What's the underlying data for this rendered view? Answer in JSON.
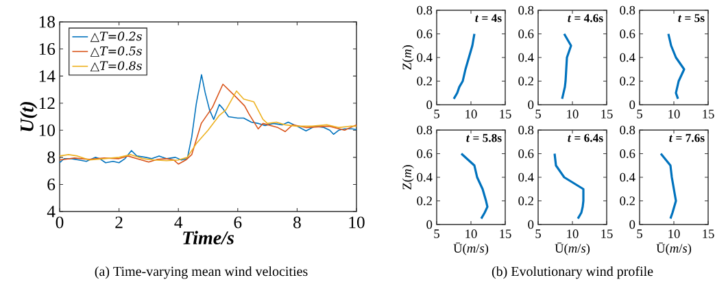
{
  "chart_data": [
    {
      "type": "line",
      "xlabel": "Time/s",
      "ylabel": "U(t)",
      "xlim": [
        0,
        10
      ],
      "ylim": [
        4,
        18
      ],
      "xticks": [
        0,
        2,
        4,
        6,
        8,
        10
      ],
      "yticks": [
        4,
        6,
        8,
        10,
        12,
        14,
        16,
        18
      ],
      "legend": "top left",
      "annotations": [
        "(a) Time-varying mean wind velocities"
      ],
      "series": [
        {
          "name": "△T=0.2s",
          "color": "#0072bd",
          "x": [
            0,
            0.15,
            0.4,
            0.65,
            0.9,
            1.2,
            1.35,
            1.55,
            1.8,
            2.0,
            2.2,
            2.42,
            2.6,
            2.9,
            3.1,
            3.35,
            3.6,
            3.9,
            4.1,
            4.3,
            4.45,
            4.6,
            4.78,
            4.9,
            5.05,
            5.19,
            5.38,
            5.5,
            5.69,
            6.0,
            6.2,
            6.46,
            6.7,
            6.92,
            7.2,
            7.5,
            7.7,
            8.0,
            8.3,
            8.6,
            8.9,
            9.1,
            9.23,
            9.4,
            9.6,
            9.85,
            10
          ],
          "values": [
            7.6,
            7.9,
            7.9,
            7.8,
            7.7,
            8.0,
            7.9,
            7.6,
            7.7,
            7.6,
            7.9,
            8.5,
            8.1,
            8.0,
            7.9,
            8.1,
            7.9,
            8.0,
            7.8,
            7.9,
            9.5,
            11.9,
            14.1,
            12.8,
            11.5,
            10.8,
            11.9,
            11.6,
            11.0,
            10.9,
            10.9,
            10.6,
            10.5,
            10.35,
            10.5,
            10.4,
            10.6,
            10.3,
            9.95,
            10.3,
            10.2,
            10.0,
            9.7,
            10.0,
            10.1,
            10.1,
            10.05
          ]
        },
        {
          "name": "△T=0.5s",
          "color": "#d95319",
          "x": [
            0,
            0.5,
            1.0,
            1.5,
            2.0,
            2.3,
            2.6,
            3.0,
            3.3,
            3.6,
            3.85,
            4.0,
            4.25,
            4.45,
            4.77,
            5.15,
            5.5,
            5.92,
            6.23,
            6.38,
            6.69,
            6.85,
            7.35,
            7.6,
            7.85,
            8.3,
            9.08,
            9.6,
            10
          ],
          "values": [
            7.8,
            7.95,
            7.85,
            7.95,
            7.9,
            8.1,
            7.9,
            7.65,
            7.85,
            7.9,
            7.8,
            7.5,
            7.8,
            8.2,
            10.5,
            11.7,
            13.4,
            12.5,
            11.8,
            11.2,
            10.1,
            10.5,
            10.2,
            9.9,
            10.4,
            10.2,
            10.3,
            10.0,
            10.4
          ]
        },
        {
          "name": "△T=0.8s",
          "color": "#edb120",
          "x": [
            0,
            0.3,
            0.6,
            1.0,
            1.5,
            2.0,
            2.4,
            2.8,
            3.2,
            3.6,
            4.0,
            4.3,
            4.6,
            5.0,
            5.38,
            5.6,
            5.96,
            6.2,
            6.54,
            6.85,
            7.0,
            7.3,
            7.6,
            8.0,
            8.5,
            9.0,
            9.4,
            9.8,
            10
          ],
          "values": [
            8.1,
            8.2,
            8.1,
            7.8,
            7.9,
            8.0,
            8.2,
            7.9,
            7.8,
            7.75,
            7.8,
            8.0,
            9.0,
            10.0,
            11.1,
            11.5,
            12.9,
            12.3,
            12.1,
            10.8,
            10.5,
            10.6,
            10.4,
            10.3,
            10.3,
            10.4,
            10.2,
            10.3,
            10.3
          ]
        }
      ]
    },
    {
      "type": "line",
      "ylabel": "Z(*m*)",
      "xlim": [
        5,
        15
      ],
      "ylim": [
        0,
        0.8
      ],
      "xticks": [
        5,
        10,
        15
      ],
      "yticks": [
        0,
        0.2,
        0.4,
        0.6,
        0.8
      ],
      "annotations": [
        "*t* = 4s",
        "(b) Evolutionary wind profile"
      ],
      "series": [
        {
          "color": "#0072bd",
          "x": [
            7.5,
            8.0,
            8.3,
            8.8,
            9.2,
            9.7,
            10.2,
            10.5
          ],
          "values": [
            0.05,
            0.1,
            0.15,
            0.2,
            0.3,
            0.4,
            0.5,
            0.6
          ]
        }
      ]
    },
    {
      "type": "line",
      "xlim": [
        5,
        15
      ],
      "ylim": [
        0,
        0.8
      ],
      "xticks": [
        5,
        10,
        15
      ],
      "yticks": [
        0,
        0.2,
        0.4,
        0.6,
        0.8
      ],
      "annotations": [
        "*t* = 4.6s"
      ],
      "series": [
        {
          "color": "#0072bd",
          "x": [
            8.5,
            8.7,
            8.9,
            9.0,
            9.1,
            9.2,
            9.8,
            8.8
          ],
          "values": [
            0.05,
            0.1,
            0.15,
            0.2,
            0.3,
            0.4,
            0.5,
            0.6
          ]
        }
      ]
    },
    {
      "type": "line",
      "xlim": [
        5,
        15
      ],
      "ylim": [
        0,
        0.8
      ],
      "xticks": [
        5,
        10,
        15
      ],
      "yticks": [
        0,
        0.2,
        0.4,
        0.6,
        0.8
      ],
      "annotations": [
        "*t* = 5s"
      ],
      "series": [
        {
          "color": "#0072bd",
          "x": [
            10.6,
            10.3,
            10.7,
            11.5,
            10.3,
            9.6,
            9.2
          ],
          "values": [
            0.05,
            0.1,
            0.2,
            0.3,
            0.4,
            0.5,
            0.6
          ]
        }
      ]
    },
    {
      "type": "line",
      "xlabel": "Ū(*m*/*s*)",
      "ylabel": "Z(*m*)",
      "xlim": [
        5,
        15
      ],
      "ylim": [
        0,
        0.8
      ],
      "xticks": [
        5,
        10,
        15
      ],
      "yticks": [
        0,
        0.2,
        0.4,
        0.6,
        0.8
      ],
      "annotations": [
        "*t* = 5.8s"
      ],
      "series": [
        {
          "color": "#0072bd",
          "x": [
            11.5,
            12.0,
            12.4,
            12.2,
            11.7,
            10.9,
            10.5,
            8.6
          ],
          "values": [
            0.05,
            0.1,
            0.15,
            0.2,
            0.3,
            0.4,
            0.5,
            0.6
          ]
        }
      ]
    },
    {
      "type": "line",
      "xlabel": "Ū(*m*/*s*)",
      "xlim": [
        5,
        15
      ],
      "ylim": [
        0,
        0.8
      ],
      "xticks": [
        5,
        10,
        15
      ],
      "yticks": [
        0,
        0.2,
        0.4,
        0.6,
        0.8
      ],
      "annotations": [
        "*t* = 6.4s"
      ],
      "series": [
        {
          "color": "#0072bd",
          "x": [
            10.8,
            11.3,
            11.5,
            11.6,
            11.6,
            8.8,
            7.6,
            7.4
          ],
          "values": [
            0.05,
            0.1,
            0.15,
            0.2,
            0.3,
            0.4,
            0.5,
            0.6
          ]
        }
      ]
    },
    {
      "type": "line",
      "xlabel": "Ū(*m*/*s*)",
      "xlim": [
        5,
        15
      ],
      "ylim": [
        0,
        0.8
      ],
      "xticks": [
        5,
        10,
        15
      ],
      "yticks": [
        0,
        0.2,
        0.4,
        0.6,
        0.8
      ],
      "annotations": [
        "*t* = 7.6s"
      ],
      "series": [
        {
          "color": "#0072bd",
          "x": [
            9.5,
            9.8,
            10.3,
            10.0,
            9.7,
            9.5,
            8.1
          ],
          "values": [
            0.05,
            0.1,
            0.2,
            0.3,
            0.4,
            0.5,
            0.6
          ]
        }
      ]
    }
  ]
}
